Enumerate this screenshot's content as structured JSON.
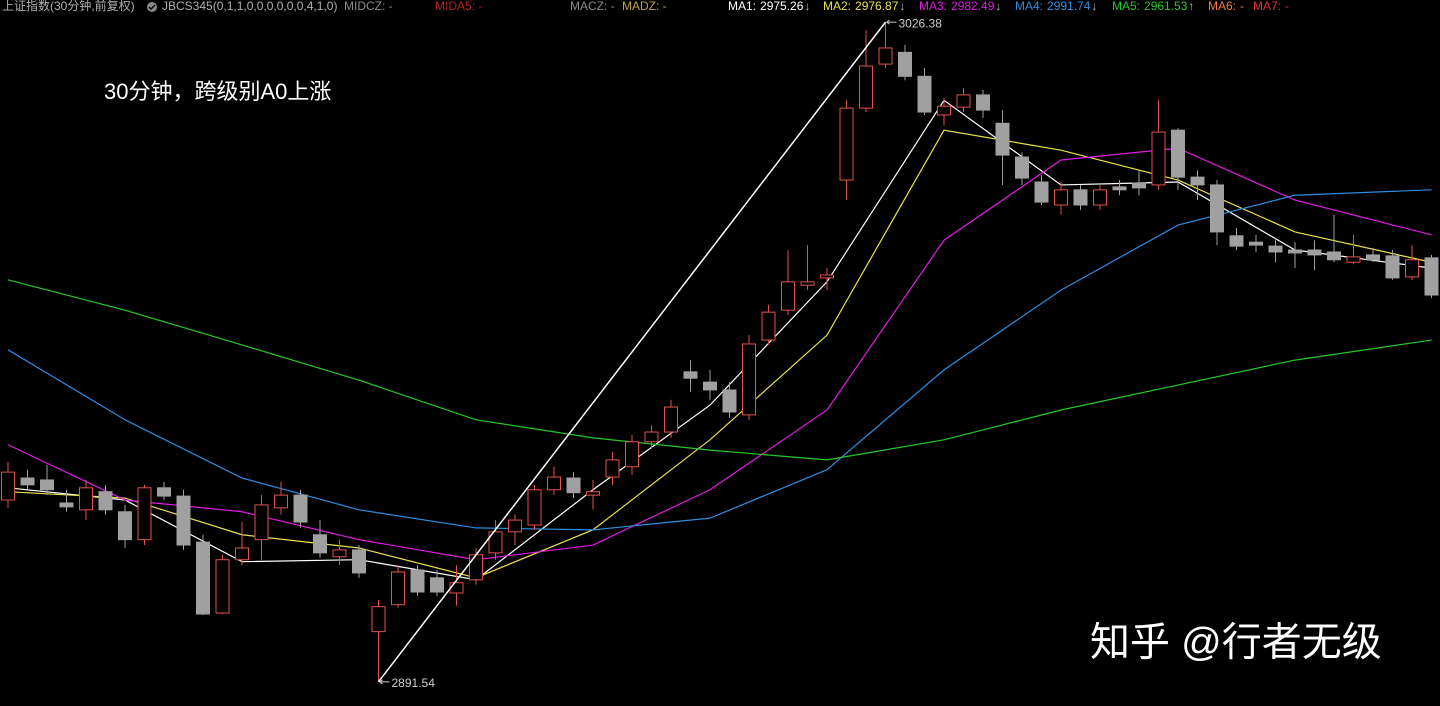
{
  "chart_data": {
    "type": "candlestick",
    "header": {
      "title": "上证指数(30分钟,前复权)",
      "indicator": "JBCS345(0,1,1,0,0,0,0,0,0,4,1,0)",
      "fields": [
        {
          "text": "MIDCZ: -",
          "color": "#8a8a8a"
        },
        {
          "text": "MIDA5: -",
          "color": "#b02020"
        },
        {
          "text": "MACZ: -",
          "color": "#8a8a8a"
        },
        {
          "text": "MADZ: -",
          "color": "#b9a24a"
        }
      ]
    },
    "annotation": "30分钟，跨级别A0上涨",
    "watermark": "知乎 @行者无级",
    "up_color": "#e0524e",
    "down_color": "#a0a0a0",
    "ylim": [
      2886.6,
      3030.9
    ],
    "high_label": "3026.38",
    "low_label": "2891.54",
    "candles": {
      "open": [
        2928.7,
        2933.2,
        2932.8,
        2928.1,
        2926.7,
        2930.4,
        2926.3,
        2920.6,
        2931.2,
        2929.5,
        2920.1,
        2905.6,
        2916.5,
        2920.6,
        2927.1,
        2929.7,
        2921.6,
        2917.1,
        2918.5,
        2901.8,
        2907.3,
        2914.4,
        2912.8,
        2909.7,
        2912.4,
        2917.9,
        2922.2,
        2923.6,
        2930.8,
        2933.2,
        2929.7,
        2933.4,
        2935.5,
        2940.6,
        2942.6,
        2954.9,
        2952.8,
        2951.2,
        2946.1,
        2961.4,
        2967.5,
        2972.6,
        2974.1,
        2994.1,
        3008.8,
        3017.8,
        3020.2,
        3015.3,
        3007.4,
        3009.0,
        3011.5,
        3005.7,
        2998.8,
        2993.7,
        2989.0,
        2992.1,
        2989.0,
        2992.7,
        2993.5,
        2993.1,
        3004.3,
        2994.7,
        2993.1,
        2982.7,
        2981.4,
        2980.6,
        2979.8,
        2979.8,
        2979.4,
        2977.3,
        2978.8,
        2978.6,
        2974.3,
        2978.2
      ],
      "high": [
        2936.5,
        2934.9,
        2935.9,
        2930.8,
        2932.8,
        2931.8,
        2927.7,
        2931.8,
        2932.4,
        2930.8,
        2921.6,
        2917.5,
        2924.2,
        2929.7,
        2932.4,
        2930.8,
        2924.6,
        2920.6,
        2919.5,
        2908.3,
        2915.4,
        2915.4,
        2914.4,
        2915.4,
        2918.9,
        2924.6,
        2925.7,
        2931.8,
        2935.5,
        2934.4,
        2932.8,
        2938.5,
        2942.0,
        2944.0,
        2949.2,
        2957.3,
        2955.3,
        2952.8,
        2962.4,
        2968.6,
        2979.8,
        2980.8,
        2976.1,
        3010.4,
        3024.7,
        3026.38,
        3021.7,
        3017.0,
        3010.9,
        3012.9,
        3012.5,
        3008.4,
        2999.8,
        2995.1,
        2993.7,
        2993.1,
        2993.1,
        2994.1,
        2996.1,
        3010.4,
        3004.7,
        2996.1,
        2994.1,
        2984.3,
        2982.9,
        2982.3,
        2981.4,
        2981.8,
        2987.0,
        2982.9,
        2980.2,
        2979.8,
        2980.8,
        2978.8
      ],
      "low": [
        2927.1,
        2930.8,
        2929.7,
        2926.3,
        2924.6,
        2925.7,
        2918.9,
        2919.5,
        2928.7,
        2918.5,
        2905.2,
        2905.4,
        2915.4,
        2916.5,
        2925.7,
        2923.0,
        2916.9,
        2915.4,
        2912.8,
        2891.54,
        2906.7,
        2909.1,
        2909.1,
        2907.1,
        2911.4,
        2916.5,
        2919.5,
        2922.6,
        2929.7,
        2929.1,
        2926.7,
        2931.8,
        2933.8,
        2939.3,
        2941.4,
        2950.8,
        2949.2,
        2945.5,
        2945.1,
        2960.4,
        2966.5,
        2971.6,
        2971.6,
        2990.0,
        3008.0,
        3017.0,
        3014.5,
        3007.4,
        3005.3,
        3008.0,
        3006.8,
        2993.1,
        2993.1,
        2989.0,
        2987.0,
        2988.0,
        2988.0,
        2991.0,
        2991.0,
        2992.1,
        2992.1,
        2990.0,
        2980.8,
        2979.8,
        2979.4,
        2977.3,
        2976.1,
        2975.7,
        2977.3,
        2976.9,
        2977.3,
        2973.7,
        2973.7,
        2970.0
      ],
      "close": [
        2934.4,
        2931.8,
        2930.8,
        2927.3,
        2931.2,
        2926.7,
        2920.6,
        2931.2,
        2929.5,
        2919.5,
        2905.4,
        2916.5,
        2918.9,
        2927.7,
        2929.7,
        2924.2,
        2917.9,
        2918.5,
        2913.8,
        2906.9,
        2914.0,
        2909.9,
        2909.9,
        2911.8,
        2917.5,
        2922.2,
        2924.6,
        2930.8,
        2933.4,
        2930.2,
        2930.4,
        2936.9,
        2940.6,
        2942.6,
        2947.7,
        2953.6,
        2951.2,
        2946.7,
        2960.6,
        2967.1,
        2973.3,
        2973.3,
        2974.7,
        3008.8,
        3017.4,
        3021.1,
        3015.3,
        3008.0,
        3009.2,
        3011.5,
        3008.4,
        2999.2,
        2994.5,
        2989.6,
        2992.1,
        2989.0,
        2992.1,
        2992.1,
        2992.5,
        3003.9,
        2994.7,
        2993.1,
        2983.5,
        2980.6,
        2980.8,
        2979.4,
        2979.2,
        2978.8,
        2977.8,
        2978.4,
        2977.8,
        2974.1,
        2977.8,
        2970.6
      ]
    },
    "series": [
      {
        "name": "MA1:",
        "value_label": "2975.26",
        "trend": "↓",
        "color": "#ffffff",
        "x": [
          0,
          6,
          12,
          18,
          24,
          30,
          36,
          42,
          48,
          54,
          60,
          66,
          73
        ],
        "values": [
          2931.2,
          2928.7,
          2916.1,
          2916.5,
          2912.4,
          2930.8,
          2948.1,
          2973.3,
          3010.4,
          2993.1,
          2993.7,
          2979.8,
          2976.1
        ]
      },
      {
        "name": "MA2:",
        "value_label": "2976.87",
        "trend": "↓",
        "color": "#e8e04a",
        "x": [
          0,
          6,
          12,
          18,
          24,
          30,
          36,
          42,
          48,
          54,
          60,
          66,
          73
        ],
        "values": [
          2930.4,
          2929.1,
          2921.6,
          2918.9,
          2912.8,
          2922.6,
          2941.0,
          2962.4,
          3004.3,
          3000.2,
          2994.1,
          2983.5,
          2977.3
        ]
      },
      {
        "name": "MA3:",
        "value_label": "2982.49",
        "trend": "↓",
        "color": "#e01ce0",
        "x": [
          0,
          6,
          12,
          18,
          24,
          30,
          36,
          42,
          48,
          54,
          60,
          66,
          73
        ],
        "values": [
          2940.0,
          2928.7,
          2926.3,
          2920.6,
          2916.5,
          2919.5,
          2930.8,
          2947.1,
          2981.8,
          2998.2,
          3000.6,
          2990.0,
          2982.9
        ]
      },
      {
        "name": "MA4:",
        "value_label": "2991.74",
        "trend": "↓",
        "color": "#2f8de0",
        "x": [
          0,
          6,
          12,
          18,
          24,
          30,
          36,
          42,
          48,
          54,
          60,
          66,
          73
        ],
        "values": [
          2959.4,
          2945.1,
          2933.2,
          2926.7,
          2923.0,
          2922.6,
          2925.0,
          2934.9,
          2955.3,
          2971.6,
          2984.9,
          2991.0,
          2992.1
        ]
      },
      {
        "name": "MA5:",
        "value_label": "2961.53",
        "trend": "↑",
        "color": "#27c827",
        "x": [
          0,
          6,
          12,
          18,
          24,
          30,
          36,
          42,
          48,
          54,
          60,
          66,
          73
        ],
        "values": [
          2973.7,
          2967.5,
          2960.4,
          2953.2,
          2945.1,
          2941.4,
          2938.9,
          2936.9,
          2941.0,
          2947.1,
          2952.2,
          2957.3,
          2961.4
        ]
      },
      {
        "name": "MA6:",
        "value_label": "-",
        "color": "#f08040",
        "x": [],
        "values": []
      },
      {
        "name": "MA7:",
        "value_label": "-",
        "color": "#e03030",
        "x": [],
        "values": []
      }
    ]
  }
}
